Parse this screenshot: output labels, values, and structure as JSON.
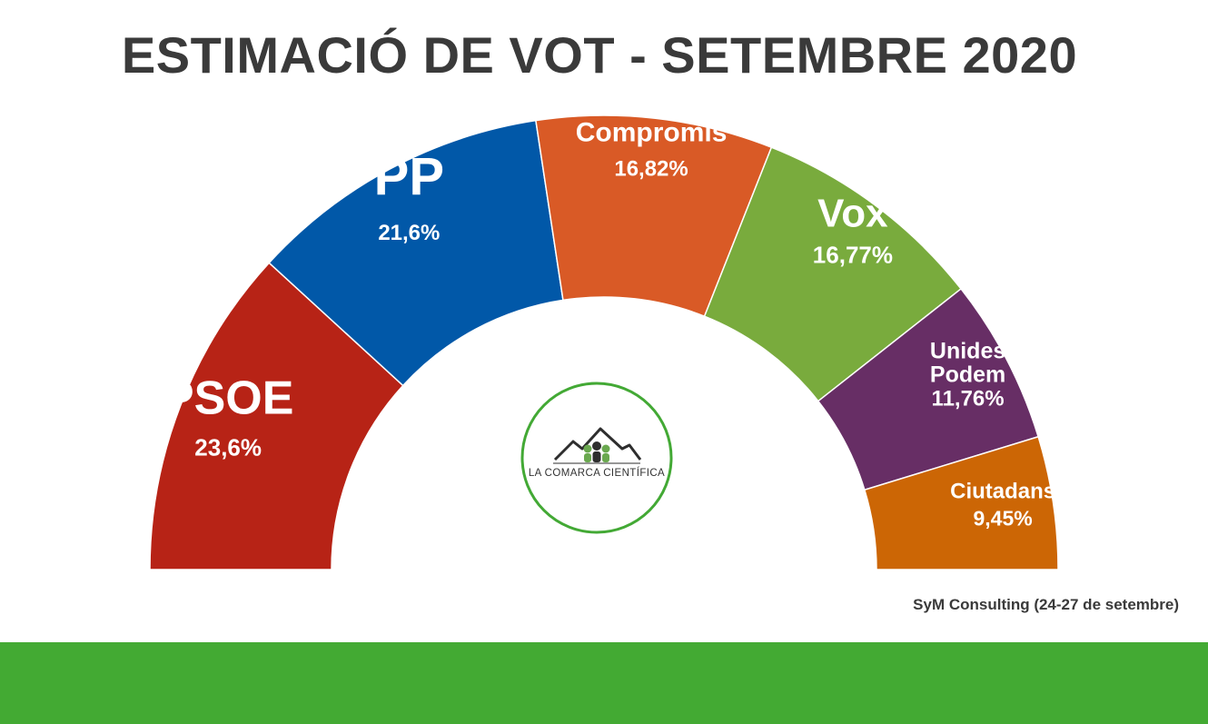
{
  "title": "ESTIMACIÓ DE VOT - SETEMBRE 2020",
  "source": "SyM Consulting (24-27 de setembre)",
  "logo": {
    "text": "LA COMARCA CIENTÍFICA",
    "icon": "mountain-people-logo-icon",
    "ring_color": "#43a935"
  },
  "footer_color": "#43aa33",
  "chart_data": {
    "type": "pie",
    "variant": "half-donut",
    "title": "ESTIMACIÓ DE VOT - SETEMBRE 2020",
    "unit": "%",
    "slices": [
      {
        "name": "PSOE",
        "display_name": [
          "PSOE"
        ],
        "value": 23.6,
        "label": "23,6%",
        "color": "#b72316"
      },
      {
        "name": "PP",
        "display_name": [
          "PP"
        ],
        "value": 21.6,
        "label": "21,6%",
        "color": "#0158a8"
      },
      {
        "name": "Compromís",
        "display_name": [
          "Compromís"
        ],
        "value": 16.82,
        "label": "16,82%",
        "color": "#d95a26"
      },
      {
        "name": "Vox",
        "display_name": [
          "Vox"
        ],
        "value": 16.77,
        "label": "16,77%",
        "color": "#79ab3d"
      },
      {
        "name": "Unides Podem",
        "display_name": [
          "Unides",
          "Podem"
        ],
        "value": 11.76,
        "label": "11,76%",
        "color": "#672e65"
      },
      {
        "name": "Ciutadans",
        "display_name": [
          "Ciutadans"
        ],
        "value": 9.45,
        "label": "9,45%",
        "color": "#cc6605"
      }
    ]
  }
}
